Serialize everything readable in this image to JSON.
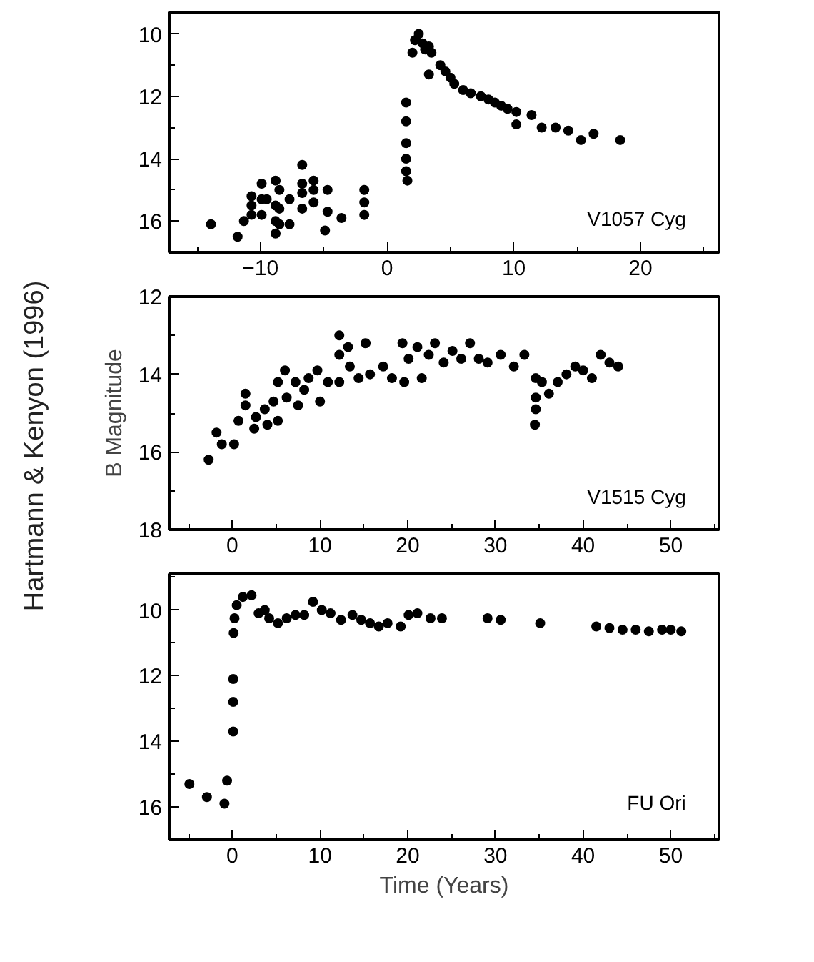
{
  "chart_data": [
    {
      "type": "scatter",
      "title": "V1057 Cyg",
      "marker": "circle",
      "grid": false,
      "xlim": [
        -17.2,
        26.2
      ],
      "ylim": [
        17,
        9.3
      ],
      "xticks": [
        -10,
        0,
        10,
        20
      ],
      "yticks": [
        10,
        12,
        14,
        16
      ],
      "series": [
        {
          "color": "#000000",
          "x": [
            -13.9,
            -11.8,
            -11.3,
            -10.7,
            -10.7,
            -10.7,
            -9.9,
            -9.9,
            -9.9,
            -9.5,
            -8.8,
            -8.8,
            -8.8,
            -8.8,
            -8.5,
            -8.5,
            -8.5,
            -7.7,
            -7.7,
            -6.7,
            -6.7,
            -6.7,
            -6.7,
            -5.8,
            -5.8,
            -5.8,
            -4.9,
            -4.7,
            -4.7,
            -3.6,
            -1.8,
            -1.8,
            -1.8,
            1.5,
            1.5,
            1.5,
            1.5,
            1.5,
            1.6,
            2.0,
            2.2,
            2.5,
            2.8,
            3.0,
            3.3,
            3.5,
            3.3,
            4.2,
            4.6,
            5.0,
            5.3,
            6.0,
            6.6,
            7.4,
            8.0,
            8.5,
            9.0,
            9.5,
            10.2,
            10.2,
            11.4,
            12.2,
            13.3,
            14.3,
            15.3,
            16.3,
            18.4
          ],
          "values": [
            16.1,
            16.5,
            16.0,
            15.2,
            15.5,
            15.8,
            14.8,
            15.3,
            15.8,
            15.3,
            14.7,
            15.5,
            16.0,
            16.4,
            15.0,
            15.6,
            16.1,
            15.3,
            16.1,
            14.2,
            14.8,
            15.1,
            15.6,
            14.7,
            15.0,
            15.4,
            16.3,
            15.0,
            15.7,
            15.9,
            15.0,
            15.4,
            15.8,
            12.2,
            12.8,
            13.5,
            14.0,
            14.4,
            14.7,
            10.6,
            10.2,
            10.0,
            10.3,
            10.5,
            10.4,
            10.6,
            11.3,
            11.0,
            11.2,
            11.4,
            11.6,
            11.8,
            11.9,
            12.0,
            12.1,
            12.2,
            12.3,
            12.4,
            12.5,
            12.9,
            12.6,
            13.0,
            13.0,
            13.1,
            13.4,
            13.2,
            13.4
          ]
        }
      ]
    },
    {
      "type": "scatter",
      "title": "V1515 Cyg",
      "ylabel": "B Magnitude",
      "annotations": [
        "Hartmann & Kenyon (1996)"
      ],
      "marker": "circle",
      "grid": false,
      "xlim": [
        -7.2,
        55.5
      ],
      "ylim": [
        18,
        12
      ],
      "xticks": [
        0,
        10,
        20,
        30,
        40,
        50
      ],
      "yticks": [
        12,
        14,
        16,
        18
      ],
      "series": [
        {
          "color": "#000000",
          "x": [
            -2.7,
            -1.8,
            -1.2,
            0.2,
            0.7,
            1.5,
            1.5,
            2.5,
            2.7,
            3.7,
            4.0,
            4.7,
            5.2,
            5.2,
            6.0,
            6.2,
            7.2,
            7.5,
            8.2,
            8.7,
            9.7,
            10.0,
            10.9,
            12.2,
            12.2,
            12.2,
            13.2,
            13.4,
            14.4,
            15.2,
            15.7,
            17.2,
            18.2,
            19.4,
            19.6,
            20.1,
            21.1,
            21.6,
            22.4,
            23.1,
            24.1,
            25.1,
            26.1,
            27.1,
            28.1,
            29.1,
            30.6,
            32.1,
            33.3,
            34.5,
            34.6,
            34.6,
            34.6,
            35.3,
            36.1,
            37.1,
            38.1,
            39.1,
            40.0,
            41.0,
            42.0,
            43.0,
            44.0
          ],
          "values": [
            16.2,
            15.5,
            15.8,
            15.8,
            15.2,
            14.8,
            14.5,
            15.4,
            15.1,
            14.9,
            15.3,
            14.7,
            14.2,
            15.2,
            13.9,
            14.6,
            14.2,
            14.8,
            14.4,
            14.1,
            13.9,
            14.7,
            14.2,
            13.0,
            13.5,
            14.2,
            13.3,
            13.8,
            14.1,
            13.2,
            14.0,
            13.8,
            14.1,
            13.2,
            14.2,
            13.6,
            13.3,
            14.1,
            13.5,
            13.2,
            13.7,
            13.4,
            13.6,
            13.2,
            13.6,
            13.7,
            13.5,
            13.8,
            13.5,
            15.3,
            14.1,
            14.6,
            14.9,
            14.2,
            14.5,
            14.2,
            14.0,
            13.8,
            13.9,
            14.1,
            13.5,
            13.7,
            13.8
          ]
        }
      ]
    },
    {
      "type": "scatter",
      "title": "FU Ori",
      "xlabel": "Time (Years)",
      "marker": "circle",
      "grid": false,
      "xlim": [
        -7.2,
        55.5
      ],
      "ylim": [
        17,
        8.9
      ],
      "xticks": [
        0,
        10,
        20,
        30,
        40,
        50
      ],
      "yticks": [
        10,
        12,
        14,
        16
      ],
      "series": [
        {
          "color": "#000000",
          "x": [
            -4.9,
            -2.9,
            -0.9,
            -0.6,
            0.1,
            0.1,
            0.1,
            0.15,
            0.25,
            0.5,
            1.2,
            2.2,
            3.0,
            3.7,
            4.2,
            5.2,
            6.2,
            7.2,
            8.2,
            9.2,
            10.2,
            11.2,
            12.4,
            13.7,
            14.7,
            15.7,
            16.7,
            17.7,
            19.2,
            20.1,
            21.1,
            22.6,
            23.9,
            29.1,
            30.6,
            35.1,
            41.5,
            43.0,
            44.5,
            46.0,
            47.5,
            49.0,
            50.0,
            51.2
          ],
          "values": [
            15.3,
            15.7,
            15.9,
            15.2,
            13.7,
            12.8,
            12.1,
            10.7,
            10.25,
            9.85,
            9.6,
            9.55,
            10.1,
            10.0,
            10.25,
            10.4,
            10.25,
            10.15,
            10.15,
            9.75,
            10.0,
            10.1,
            10.3,
            10.15,
            10.3,
            10.4,
            10.5,
            10.4,
            10.5,
            10.15,
            10.1,
            10.25,
            10.25,
            10.25,
            10.3,
            10.4,
            10.5,
            10.55,
            10.6,
            10.6,
            10.65,
            10.6,
            10.6,
            10.65
          ]
        }
      ]
    }
  ]
}
